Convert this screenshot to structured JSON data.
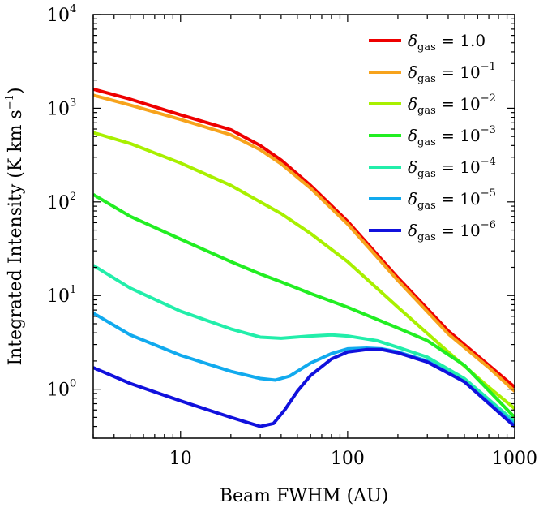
{
  "chart_data": {
    "type": "line",
    "title": "",
    "xlabel": "Beam FWHM (AU)",
    "ylabel": "Integrated Intensity (K km s",
    "ylabel_sup": "−1",
    "ylabel_close": ")",
    "x_scale": "log",
    "y_scale": "log",
    "xlim": [
      3,
      1000
    ],
    "ylim": [
      0.3,
      10000
    ],
    "grid": false,
    "legend_position": "top-right",
    "x_ticks": [
      {
        "value": 10,
        "label": "10"
      },
      {
        "value": 100,
        "label": "100"
      },
      {
        "value": 1000,
        "label": "1000"
      }
    ],
    "y_ticks": [
      {
        "value": 1,
        "base": "10",
        "exp": "0"
      },
      {
        "value": 10,
        "base": "10",
        "exp": "1"
      },
      {
        "value": 100,
        "base": "10",
        "exp": "2"
      },
      {
        "value": 1000,
        "base": "10",
        "exp": "3"
      },
      {
        "value": 10000,
        "base": "10",
        "exp": "4"
      }
    ],
    "legend_symbol": "δ",
    "legend_sub": "gas",
    "legend_eq": " = ",
    "series": [
      {
        "name": "1.0",
        "base": "1.0",
        "exp": "",
        "color": "#ee0000",
        "x": [
          3,
          5,
          10,
          20,
          30,
          40,
          60,
          100,
          200,
          400,
          700,
          1000
        ],
        "y": [
          1600,
          1250,
          850,
          590,
          400,
          280,
          150,
          62,
          15.5,
          4.2,
          1.8,
          1.05
        ]
      },
      {
        "name": "10^-1",
        "base": "10",
        "exp": "−1",
        "color": "#f7a31c",
        "x": [
          3,
          5,
          10,
          20,
          30,
          40,
          60,
          100,
          200,
          400,
          700,
          1000
        ],
        "y": [
          1380,
          1080,
          760,
          520,
          360,
          255,
          140,
          58,
          14.5,
          3.9,
          1.7,
          0.95
        ]
      },
      {
        "name": "10^-2",
        "base": "10",
        "exp": "−2",
        "color": "#a8f000",
        "x": [
          3,
          5,
          10,
          20,
          30,
          40,
          60,
          100,
          200,
          400,
          700,
          1000
        ],
        "y": [
          550,
          420,
          260,
          150,
          100,
          75,
          46,
          23,
          7.5,
          2.5,
          1.05,
          0.62
        ]
      },
      {
        "name": "10^-3",
        "base": "10",
        "exp": "−3",
        "color": "#22ee22",
        "x": [
          3,
          5,
          10,
          20,
          30,
          40,
          60,
          100,
          200,
          300,
          500,
          1000
        ],
        "y": [
          120,
          70,
          40,
          23,
          17,
          14,
          10.5,
          7.5,
          4.5,
          3.3,
          1.8,
          0.5
        ]
      },
      {
        "name": "10^-4",
        "base": "10",
        "exp": "−4",
        "color": "#22eeaa",
        "x": [
          3,
          5,
          10,
          20,
          30,
          40,
          60,
          80,
          100,
          150,
          200,
          300,
          500,
          1000
        ],
        "y": [
          21,
          12,
          6.8,
          4.4,
          3.6,
          3.5,
          3.7,
          3.8,
          3.7,
          3.3,
          2.8,
          2.2,
          1.3,
          0.45
        ]
      },
      {
        "name": "10^-5",
        "base": "10",
        "exp": "−5",
        "color": "#11aaee",
        "x": [
          3,
          5,
          10,
          20,
          30,
          37,
          45,
          60,
          80,
          100,
          130,
          160,
          200,
          300,
          500,
          1000
        ],
        "y": [
          6.5,
          3.8,
          2.3,
          1.55,
          1.3,
          1.25,
          1.38,
          1.9,
          2.4,
          2.7,
          2.75,
          2.7,
          2.5,
          2.0,
          1.2,
          0.42
        ]
      },
      {
        "name": "10^-6",
        "base": "10",
        "exp": "−6",
        "color": "#1111dd",
        "x": [
          3,
          5,
          10,
          20,
          30,
          36,
          42,
          50,
          60,
          80,
          100,
          130,
          160,
          200,
          300,
          500,
          1000
        ],
        "y": [
          1.7,
          1.15,
          0.75,
          0.5,
          0.4,
          0.43,
          0.6,
          0.95,
          1.4,
          2.1,
          2.5,
          2.65,
          2.65,
          2.45,
          1.95,
          1.2,
          0.4
        ]
      }
    ]
  }
}
